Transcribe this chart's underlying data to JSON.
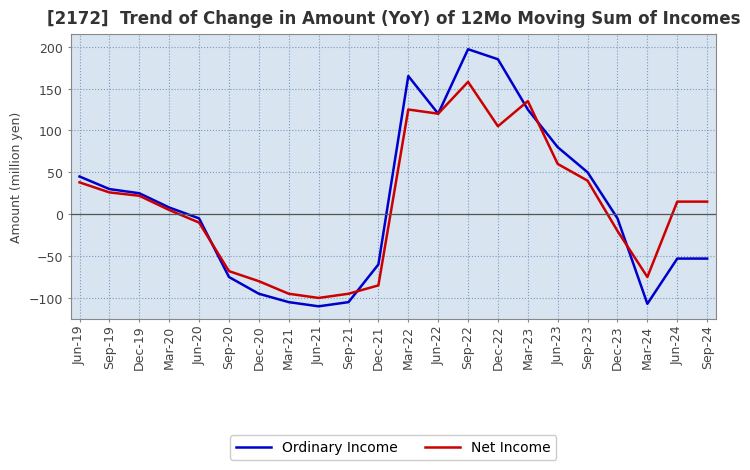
{
  "title": "[2172]  Trend of Change in Amount (YoY) of 12Mo Moving Sum of Incomes",
  "ylabel": "Amount (million yen)",
  "x_labels": [
    "Jun-19",
    "Sep-19",
    "Dec-19",
    "Mar-20",
    "Jun-20",
    "Sep-20",
    "Dec-20",
    "Mar-21",
    "Jun-21",
    "Sep-21",
    "Dec-21",
    "Mar-22",
    "Jun-22",
    "Sep-22",
    "Dec-22",
    "Mar-23",
    "Jun-23",
    "Sep-23",
    "Dec-23",
    "Mar-24",
    "Jun-24",
    "Sep-24"
  ],
  "ordinary_income": [
    45,
    30,
    25,
    8,
    -5,
    -75,
    -95,
    -105,
    -110,
    -105,
    -60,
    165,
    120,
    197,
    185,
    125,
    80,
    50,
    -5,
    -107,
    -53,
    -53
  ],
  "net_income": [
    38,
    26,
    22,
    5,
    -10,
    -68,
    -80,
    -95,
    -100,
    -95,
    -85,
    125,
    120,
    158,
    105,
    135,
    60,
    40,
    -20,
    -75,
    15,
    15
  ],
  "ordinary_income_color": "#0000cc",
  "net_income_color": "#cc0000",
  "ylim": [
    -125,
    215
  ],
  "yticks": [
    -100,
    -50,
    0,
    50,
    100,
    150,
    200
  ],
  "background_color": "#ffffff",
  "plot_bg_color": "#d8e4f0",
  "grid_color": "#7a9cc0",
  "title_fontsize": 12,
  "axis_fontsize": 9,
  "tick_fontsize": 9
}
